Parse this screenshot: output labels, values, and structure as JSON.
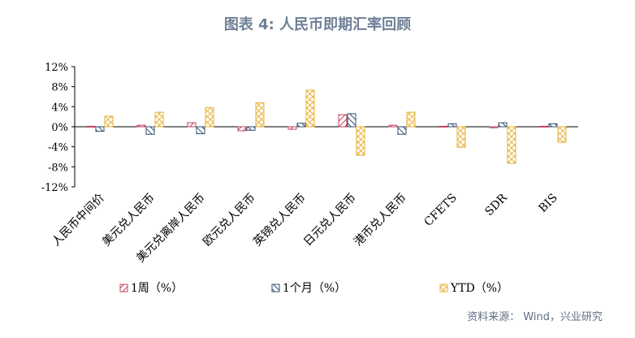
{
  "chart_data": {
    "title": "图表 4: 人民币即期汇率回顾",
    "type": "bar",
    "categories": [
      "人民币中间价",
      "美元兑人民币",
      "美元兑离岸人民币",
      "欧元兑人民币",
      "英镑兑人民币",
      "日元兑人民币",
      "港币兑人民币",
      "CFETS",
      "SDR",
      "BIS"
    ],
    "series": [
      {
        "name": "1周（%）",
        "color": "#c0405a",
        "pattern": "diagonal-stripes",
        "values": [
          0.1,
          0.3,
          0.8,
          -0.8,
          -0.5,
          2.4,
          0.3,
          0.1,
          -0.2,
          0.1
        ]
      },
      {
        "name": "1个月（%）",
        "color": "#2f4d6b",
        "pattern": "diagonal-stripes",
        "values": [
          -0.9,
          -1.5,
          -1.4,
          -0.7,
          0.7,
          2.6,
          -1.5,
          0.6,
          0.8,
          0.6
        ]
      },
      {
        "name": "YTD（%）",
        "color": "#e8b33a",
        "pattern": "crosshatch",
        "values": [
          2.1,
          2.9,
          3.8,
          4.8,
          7.3,
          -5.7,
          2.9,
          -4.1,
          -7.3,
          -3.1
        ]
      }
    ],
    "y_ticks": [
      "12%",
      "8%",
      "4%",
      "0%",
      "-4%",
      "-8%",
      "-12%"
    ],
    "ylim": [
      -12,
      12
    ],
    "legend_position": "bottom",
    "grid": false
  },
  "source": "资料来源： Wind，兴业研究"
}
